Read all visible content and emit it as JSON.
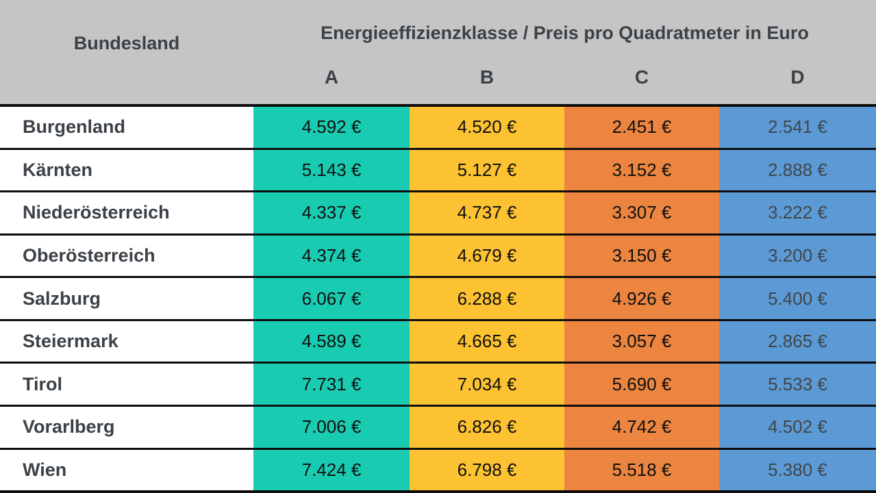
{
  "table": {
    "header": {
      "row_header": "Bundesland",
      "title": "Energieeffizienzklasse / Preis pro Quadratmeter in Euro",
      "classes": [
        "A",
        "B",
        "C",
        "D"
      ]
    },
    "rows": [
      {
        "label": "Burgenland",
        "values": [
          "4.592 €",
          "4.520 €",
          "2.451 €",
          "2.541 €"
        ]
      },
      {
        "label": "Kärnten",
        "values": [
          "5.143 €",
          "5.127 €",
          "3.152 €",
          "2.888 €"
        ]
      },
      {
        "label": "Niederösterreich",
        "values": [
          "4.337 €",
          "4.737 €",
          "3.307 €",
          "3.222 €"
        ]
      },
      {
        "label": "Oberösterreich",
        "values": [
          "4.374 €",
          "4.679 €",
          "3.150 €",
          "3.200 €"
        ]
      },
      {
        "label": "Salzburg",
        "values": [
          "6.067 €",
          "6.288 €",
          "4.926 €",
          "5.400 €"
        ]
      },
      {
        "label": "Steiermark",
        "values": [
          "4.589 €",
          "4.665 €",
          "3.057 €",
          "2.865 €"
        ]
      },
      {
        "label": "Tirol",
        "values": [
          "7.731 €",
          "7.034 €",
          "5.690 €",
          "5.533 €"
        ]
      },
      {
        "label": "Vorarlberg",
        "values": [
          "7.006 €",
          "6.826 €",
          "4.742 €",
          "4.502 €"
        ]
      },
      {
        "label": "Wien",
        "values": [
          "7.424 €",
          "6.798 €",
          "5.518 €",
          "5.380 €"
        ]
      }
    ],
    "colors": {
      "header_bg": "#c5c5c5",
      "grid_line": "#0d0d0d",
      "text_dark": "#3b4147",
      "class_a": "#19ccb1",
      "class_b": "#fcc232",
      "class_c": "#eb8540",
      "class_d": "#5c9ad5"
    }
  },
  "chart_data": {
    "type": "table",
    "title": "Energieeffizienzklasse / Preis pro Quadratmeter in Euro",
    "row_header": "Bundesland",
    "columns": [
      "A",
      "B",
      "C",
      "D"
    ],
    "unit": "EUR pro Quadratmeter",
    "rows": [
      {
        "Bundesland": "Burgenland",
        "A": 4592,
        "B": 4520,
        "C": 2451,
        "D": 2541
      },
      {
        "Bundesland": "Kärnten",
        "A": 5143,
        "B": 5127,
        "C": 3152,
        "D": 2888
      },
      {
        "Bundesland": "Niederösterreich",
        "A": 4337,
        "B": 4737,
        "C": 3307,
        "D": 3222
      },
      {
        "Bundesland": "Oberösterreich",
        "A": 4374,
        "B": 4679,
        "C": 3150,
        "D": 3200
      },
      {
        "Bundesland": "Salzburg",
        "A": 6067,
        "B": 6288,
        "C": 4926,
        "D": 5400
      },
      {
        "Bundesland": "Steiermark",
        "A": 4589,
        "B": 4665,
        "C": 3057,
        "D": 2865
      },
      {
        "Bundesland": "Tirol",
        "A": 7731,
        "B": 7034,
        "C": 5690,
        "D": 5533
      },
      {
        "Bundesland": "Vorarlberg",
        "A": 7006,
        "B": 6826,
        "C": 4742,
        "D": 4502
      },
      {
        "Bundesland": "Wien",
        "A": 7424,
        "B": 6798,
        "C": 5518,
        "D": 5380
      }
    ],
    "column_colors": {
      "A": "#19ccb1",
      "B": "#fcc232",
      "C": "#eb8540",
      "D": "#5c9ad5"
    },
    "layout": {
      "grid": "horizontal black lines",
      "legend": "none"
    }
  }
}
